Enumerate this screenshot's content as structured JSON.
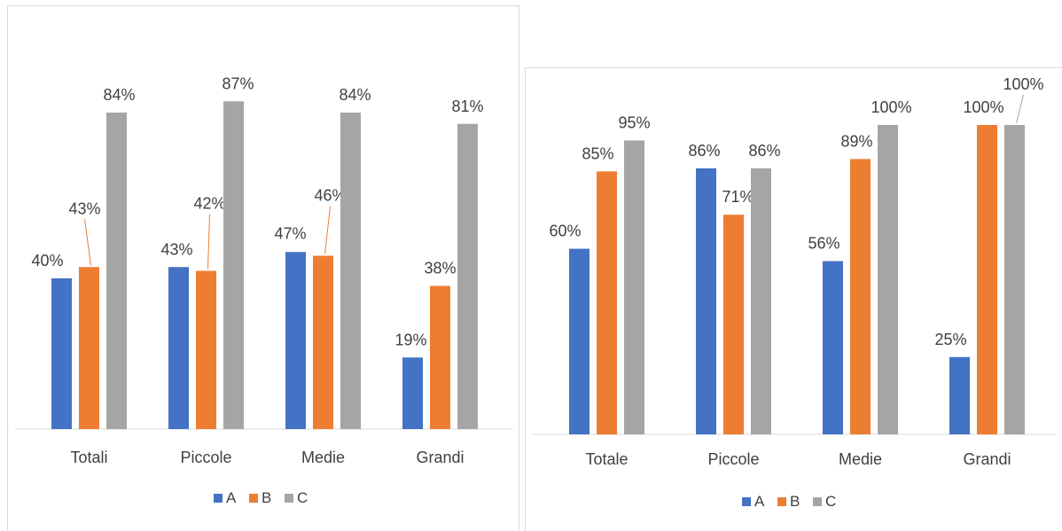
{
  "chart_data": [
    {
      "type": "bar",
      "categories": [
        "Totali",
        "Piccole",
        "Medie",
        "Grandi"
      ],
      "series": [
        {
          "name": "A",
          "values": [
            40,
            43,
            47,
            19
          ],
          "labels": [
            "40%",
            "43%",
            "47%",
            "19%"
          ],
          "color": "#4472c4"
        },
        {
          "name": "B",
          "values": [
            43,
            42,
            46,
            38
          ],
          "labels": [
            "43%",
            "42%",
            "46%",
            "38%"
          ],
          "color": "#ed7d31"
        },
        {
          "name": "C",
          "values": [
            84,
            87,
            84,
            81
          ],
          "labels": [
            "84%",
            "87%",
            "84%",
            "81%"
          ],
          "color": "#a5a5a5"
        }
      ],
      "ylim": [
        0,
        100
      ],
      "grid": false,
      "legend": "bottom",
      "title": "",
      "xlabel": "",
      "ylabel": ""
    },
    {
      "type": "bar",
      "categories": [
        "Totale",
        "Piccole",
        "Medie",
        "Grandi"
      ],
      "series": [
        {
          "name": "A",
          "values": [
            60,
            86,
            56,
            25
          ],
          "labels": [
            "60%",
            "86%",
            "56%",
            "25%"
          ],
          "color": "#4472c4"
        },
        {
          "name": "B",
          "values": [
            85,
            71,
            89,
            100
          ],
          "labels": [
            "85%",
            "71%",
            "89%",
            "100%"
          ],
          "color": "#ed7d31"
        },
        {
          "name": "C",
          "values": [
            95,
            86,
            100,
            100
          ],
          "labels": [
            "95%",
            "86%",
            "100%",
            "100%"
          ],
          "color": "#a5a5a5"
        }
      ],
      "ylim": [
        0,
        100
      ],
      "grid": false,
      "legend": "bottom",
      "title": "",
      "xlabel": "",
      "ylabel": ""
    }
  ]
}
